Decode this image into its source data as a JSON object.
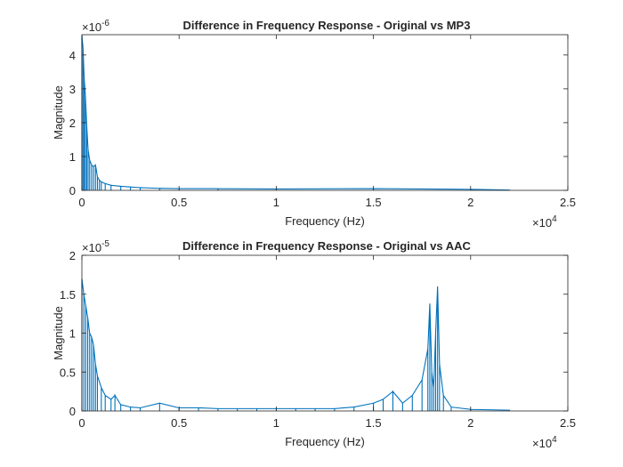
{
  "chart_data": [
    {
      "type": "line",
      "title": "Difference in Frequency Response - Original vs MP3",
      "xlabel": "Frequency (Hz)",
      "ylabel": "Magnitude",
      "xlim": [
        0,
        25000
      ],
      "ylim": [
        0,
        4.6e-06
      ],
      "x_ticks": [
        "0",
        "0.5",
        "1",
        "1.5",
        "2",
        "2.5"
      ],
      "y_ticks": [
        "0",
        "1",
        "2",
        "3",
        "4"
      ],
      "x_exponent": "×10",
      "x_exponent_power": "4",
      "y_exponent": "×10",
      "y_exponent_power": "-6",
      "x_scale": 10000,
      "y_scale": 1e-06,
      "grid": false,
      "color": "#0072BD",
      "series": [
        {
          "x": [
            0,
            60,
            120,
            180,
            250,
            320,
            400,
            500,
            600,
            700,
            800,
            900,
            1000,
            1200,
            1500,
            2000,
            2500,
            3000,
            4000,
            5000,
            7000,
            10000,
            15000,
            20000,
            22000
          ],
          "y": [
            4.6e-06,
            4.2e-06,
            3.3e-06,
            2.8e-06,
            1.9e-06,
            1.2e-06,
            9e-07,
            7.5e-07,
            7e-07,
            7.5e-07,
            4e-07,
            3e-07,
            2.5e-07,
            2e-07,
            1.5e-07,
            1.2e-07,
            1e-07,
            8e-08,
            6e-08,
            5e-08,
            5e-08,
            4e-08,
            5e-08,
            3e-08,
            1e-08
          ]
        }
      ]
    },
    {
      "type": "line",
      "title": "Difference in Frequency Response - Original vs AAC",
      "xlabel": "Frequency (Hz)",
      "ylabel": "Magnitude",
      "xlim": [
        0,
        25000
      ],
      "ylim": [
        0,
        2e-05
      ],
      "x_ticks": [
        "0",
        "0.5",
        "1",
        "1.5",
        "2",
        "2.5"
      ],
      "y_ticks": [
        "0",
        "0.5",
        "1",
        "1.5",
        "2"
      ],
      "x_exponent": "×10",
      "x_exponent_power": "4",
      "y_exponent": "×10",
      "y_exponent_power": "-5",
      "x_scale": 10000,
      "y_scale": 1e-05,
      "grid": false,
      "color": "#0072BD",
      "series": [
        {
          "x": [
            0,
            100,
            200,
            300,
            400,
            500,
            600,
            700,
            800,
            1000,
            1200,
            1500,
            1700,
            2000,
            2500,
            3000,
            4000,
            5000,
            6000,
            7000,
            8000,
            9000,
            10000,
            11000,
            12000,
            13000,
            14000,
            15000,
            15500,
            16000,
            16500,
            17000,
            17500,
            17800,
            17900,
            18000,
            18100,
            18200,
            18300,
            18400,
            18600,
            19000,
            20000,
            22000
          ],
          "y": [
            1.7e-05,
            1.5e-05,
            1.35e-05,
            1.2e-05,
            1e-05,
            9.5e-06,
            8.5e-06,
            6e-06,
            4.5e-06,
            3e-06,
            2e-06,
            1.5e-06,
            2e-06,
            8e-07,
            5e-07,
            4e-07,
            1e-06,
            4e-07,
            4e-07,
            3e-07,
            3e-07,
            3e-07,
            3e-07,
            3e-07,
            3e-07,
            3e-07,
            5e-07,
            1e-06,
            1.5e-06,
            2.5e-06,
            1e-06,
            2e-06,
            4e-06,
            8e-06,
            1.38e-05,
            5e-06,
            3e-06,
            1e-05,
            1.6e-05,
            6e-06,
            2e-06,
            5e-07,
            2e-07,
            1e-07
          ]
        }
      ]
    }
  ]
}
